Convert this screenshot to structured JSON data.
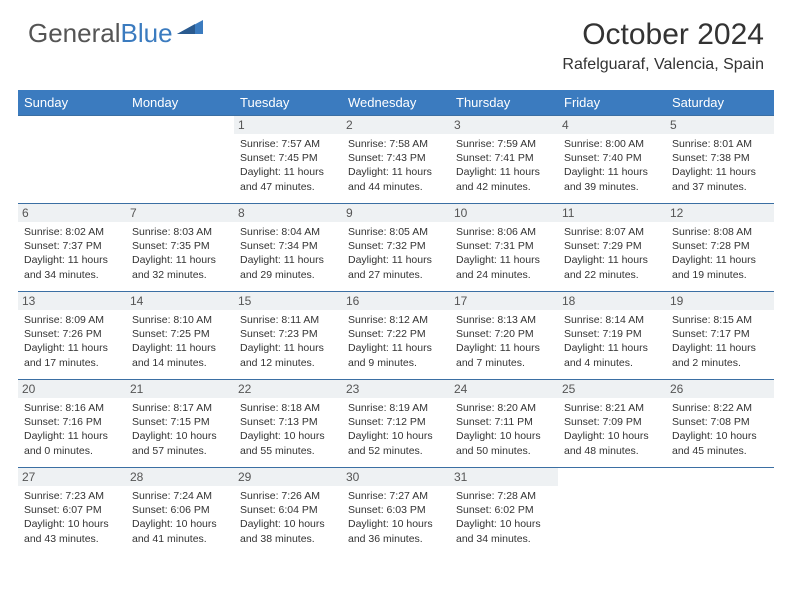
{
  "brand": {
    "part1": "General",
    "part2": "Blue"
  },
  "title": "October 2024",
  "location": "Rafelguaraf, Valencia, Spain",
  "colors": {
    "header_bg": "#3b7bbf",
    "header_text": "#ffffff",
    "daynum_bg": "#eef1f3",
    "border": "#3b6fa3",
    "text": "#333333"
  },
  "fonts": {
    "title_size": 30,
    "location_size": 16,
    "weekday_size": 13,
    "daynum_size": 12,
    "info_size": 10.5
  },
  "weekdays": [
    "Sunday",
    "Monday",
    "Tuesday",
    "Wednesday",
    "Thursday",
    "Friday",
    "Saturday"
  ],
  "weeks": [
    [
      null,
      null,
      {
        "n": "1",
        "sr": "Sunrise: 7:57 AM",
        "ss": "Sunset: 7:45 PM",
        "dl": "Daylight: 11 hours and 47 minutes."
      },
      {
        "n": "2",
        "sr": "Sunrise: 7:58 AM",
        "ss": "Sunset: 7:43 PM",
        "dl": "Daylight: 11 hours and 44 minutes."
      },
      {
        "n": "3",
        "sr": "Sunrise: 7:59 AM",
        "ss": "Sunset: 7:41 PM",
        "dl": "Daylight: 11 hours and 42 minutes."
      },
      {
        "n": "4",
        "sr": "Sunrise: 8:00 AM",
        "ss": "Sunset: 7:40 PM",
        "dl": "Daylight: 11 hours and 39 minutes."
      },
      {
        "n": "5",
        "sr": "Sunrise: 8:01 AM",
        "ss": "Sunset: 7:38 PM",
        "dl": "Daylight: 11 hours and 37 minutes."
      }
    ],
    [
      {
        "n": "6",
        "sr": "Sunrise: 8:02 AM",
        "ss": "Sunset: 7:37 PM",
        "dl": "Daylight: 11 hours and 34 minutes."
      },
      {
        "n": "7",
        "sr": "Sunrise: 8:03 AM",
        "ss": "Sunset: 7:35 PM",
        "dl": "Daylight: 11 hours and 32 minutes."
      },
      {
        "n": "8",
        "sr": "Sunrise: 8:04 AM",
        "ss": "Sunset: 7:34 PM",
        "dl": "Daylight: 11 hours and 29 minutes."
      },
      {
        "n": "9",
        "sr": "Sunrise: 8:05 AM",
        "ss": "Sunset: 7:32 PM",
        "dl": "Daylight: 11 hours and 27 minutes."
      },
      {
        "n": "10",
        "sr": "Sunrise: 8:06 AM",
        "ss": "Sunset: 7:31 PM",
        "dl": "Daylight: 11 hours and 24 minutes."
      },
      {
        "n": "11",
        "sr": "Sunrise: 8:07 AM",
        "ss": "Sunset: 7:29 PM",
        "dl": "Daylight: 11 hours and 22 minutes."
      },
      {
        "n": "12",
        "sr": "Sunrise: 8:08 AM",
        "ss": "Sunset: 7:28 PM",
        "dl": "Daylight: 11 hours and 19 minutes."
      }
    ],
    [
      {
        "n": "13",
        "sr": "Sunrise: 8:09 AM",
        "ss": "Sunset: 7:26 PM",
        "dl": "Daylight: 11 hours and 17 minutes."
      },
      {
        "n": "14",
        "sr": "Sunrise: 8:10 AM",
        "ss": "Sunset: 7:25 PM",
        "dl": "Daylight: 11 hours and 14 minutes."
      },
      {
        "n": "15",
        "sr": "Sunrise: 8:11 AM",
        "ss": "Sunset: 7:23 PM",
        "dl": "Daylight: 11 hours and 12 minutes."
      },
      {
        "n": "16",
        "sr": "Sunrise: 8:12 AM",
        "ss": "Sunset: 7:22 PM",
        "dl": "Daylight: 11 hours and 9 minutes."
      },
      {
        "n": "17",
        "sr": "Sunrise: 8:13 AM",
        "ss": "Sunset: 7:20 PM",
        "dl": "Daylight: 11 hours and 7 minutes."
      },
      {
        "n": "18",
        "sr": "Sunrise: 8:14 AM",
        "ss": "Sunset: 7:19 PM",
        "dl": "Daylight: 11 hours and 4 minutes."
      },
      {
        "n": "19",
        "sr": "Sunrise: 8:15 AM",
        "ss": "Sunset: 7:17 PM",
        "dl": "Daylight: 11 hours and 2 minutes."
      }
    ],
    [
      {
        "n": "20",
        "sr": "Sunrise: 8:16 AM",
        "ss": "Sunset: 7:16 PM",
        "dl": "Daylight: 11 hours and 0 minutes."
      },
      {
        "n": "21",
        "sr": "Sunrise: 8:17 AM",
        "ss": "Sunset: 7:15 PM",
        "dl": "Daylight: 10 hours and 57 minutes."
      },
      {
        "n": "22",
        "sr": "Sunrise: 8:18 AM",
        "ss": "Sunset: 7:13 PM",
        "dl": "Daylight: 10 hours and 55 minutes."
      },
      {
        "n": "23",
        "sr": "Sunrise: 8:19 AM",
        "ss": "Sunset: 7:12 PM",
        "dl": "Daylight: 10 hours and 52 minutes."
      },
      {
        "n": "24",
        "sr": "Sunrise: 8:20 AM",
        "ss": "Sunset: 7:11 PM",
        "dl": "Daylight: 10 hours and 50 minutes."
      },
      {
        "n": "25",
        "sr": "Sunrise: 8:21 AM",
        "ss": "Sunset: 7:09 PM",
        "dl": "Daylight: 10 hours and 48 minutes."
      },
      {
        "n": "26",
        "sr": "Sunrise: 8:22 AM",
        "ss": "Sunset: 7:08 PM",
        "dl": "Daylight: 10 hours and 45 minutes."
      }
    ],
    [
      {
        "n": "27",
        "sr": "Sunrise: 7:23 AM",
        "ss": "Sunset: 6:07 PM",
        "dl": "Daylight: 10 hours and 43 minutes."
      },
      {
        "n": "28",
        "sr": "Sunrise: 7:24 AM",
        "ss": "Sunset: 6:06 PM",
        "dl": "Daylight: 10 hours and 41 minutes."
      },
      {
        "n": "29",
        "sr": "Sunrise: 7:26 AM",
        "ss": "Sunset: 6:04 PM",
        "dl": "Daylight: 10 hours and 38 minutes."
      },
      {
        "n": "30",
        "sr": "Sunrise: 7:27 AM",
        "ss": "Sunset: 6:03 PM",
        "dl": "Daylight: 10 hours and 36 minutes."
      },
      {
        "n": "31",
        "sr": "Sunrise: 7:28 AM",
        "ss": "Sunset: 6:02 PM",
        "dl": "Daylight: 10 hours and 34 minutes."
      },
      null,
      null
    ]
  ]
}
